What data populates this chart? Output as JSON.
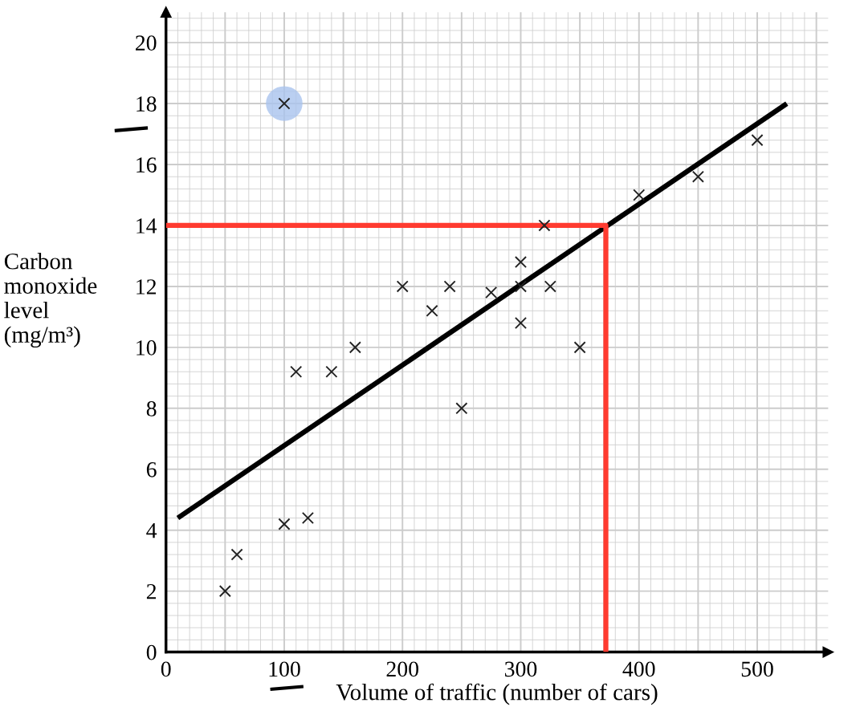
{
  "chart_data": {
    "type": "scatter",
    "xlabel": "Volume of traffic (number of cars)",
    "ylabel": "Carbon\nmonoxide\nlevel\n(mg/m³)",
    "xlim": [
      0,
      560
    ],
    "ylim": [
      0,
      21
    ],
    "xticks": [
      0,
      100,
      200,
      300,
      400,
      500
    ],
    "yticks": [
      0,
      2,
      4,
      6,
      8,
      10,
      12,
      14,
      16,
      18,
      20
    ],
    "grid": true,
    "series": [
      {
        "marker": "cross",
        "color": "#222222",
        "x": [
          50,
          60,
          100,
          120,
          100,
          110,
          140,
          160,
          200,
          225,
          240,
          250,
          275,
          300,
          300,
          300,
          320,
          325,
          350,
          400,
          450,
          500
        ],
        "values": [
          2,
          3.2,
          4.2,
          4.4,
          18,
          9.2,
          9.2,
          10,
          12,
          11.2,
          12,
          8,
          11.8,
          12,
          12.8,
          10.8,
          14,
          12,
          10,
          15,
          15.6,
          16.8
        ]
      },
      {
        "type": "line",
        "color": "#000000",
        "x": [
          10,
          525
        ],
        "values": [
          4.4,
          18
        ]
      },
      {
        "type": "line",
        "color": "#ff3b30",
        "x": [
          0,
          372,
          372
        ],
        "values": [
          14,
          14,
          0
        ]
      }
    ]
  }
}
